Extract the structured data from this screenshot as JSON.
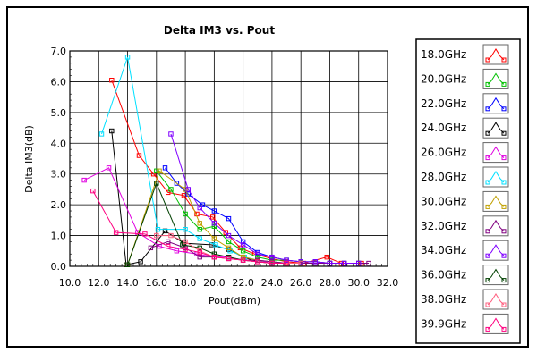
{
  "chart_data": {
    "type": "line",
    "title": "Delta IM3 vs. Pout",
    "xlabel": "Pout(dBm)",
    "ylabel": "Delta IM3(dB)",
    "xlim": [
      10.0,
      32.0
    ],
    "ylim": [
      0.0,
      7.0
    ],
    "x_ticks": [
      "10.0",
      "12.0",
      "14.0",
      "16.0",
      "18.0",
      "20.0",
      "22.0",
      "24.0",
      "26.0",
      "28.0",
      "30.0",
      "32.0"
    ],
    "y_ticks": [
      "0.0",
      "1.0",
      "2.0",
      "3.0",
      "4.0",
      "5.0",
      "6.0",
      "7.0"
    ],
    "grid": true,
    "legend_position": "right",
    "series": [
      {
        "name": "18.0GHz",
        "color": "#ff0000",
        "points": [
          [
            12.9,
            6.05
          ],
          [
            14.8,
            3.6
          ],
          [
            15.8,
            3.0
          ],
          [
            16.8,
            2.4
          ],
          [
            17.9,
            2.3
          ],
          [
            18.8,
            1.7
          ],
          [
            19.9,
            1.6
          ],
          [
            20.8,
            1.1
          ],
          [
            21.8,
            0.6
          ],
          [
            22.8,
            0.4
          ],
          [
            24.0,
            0.25
          ],
          [
            25.0,
            0.15
          ],
          [
            26.2,
            0.1
          ],
          [
            27.8,
            0.3
          ],
          [
            28.8,
            0.1
          ],
          [
            30.2,
            0.1
          ]
        ]
      },
      {
        "name": "20.0GHz",
        "color": "#00c000",
        "points": [
          [
            16.0,
            3.1
          ],
          [
            17.0,
            2.5
          ],
          [
            18.0,
            1.7
          ],
          [
            19.0,
            1.2
          ],
          [
            20.0,
            1.3
          ],
          [
            21.0,
            0.8
          ],
          [
            22.0,
            0.5
          ],
          [
            23.0,
            0.3
          ],
          [
            24.0,
            0.2
          ],
          [
            25.0,
            0.2
          ],
          [
            26.0,
            0.15
          ],
          [
            27.0,
            0.15
          ],
          [
            28.0,
            0.1
          ],
          [
            29.0,
            0.1
          ],
          [
            30.0,
            0.1
          ]
        ]
      },
      {
        "name": "22.0GHz",
        "color": "#0000ff",
        "points": [
          [
            16.6,
            3.2
          ],
          [
            17.4,
            2.7
          ],
          [
            18.2,
            2.35
          ],
          [
            19.2,
            2.0
          ],
          [
            20.0,
            1.8
          ],
          [
            21.0,
            1.55
          ],
          [
            22.0,
            0.8
          ],
          [
            23.0,
            0.45
          ],
          [
            24.0,
            0.3
          ],
          [
            25.0,
            0.2
          ],
          [
            26.0,
            0.15
          ],
          [
            27.0,
            0.15
          ],
          [
            28.0,
            0.1
          ],
          [
            29.0,
            0.1
          ],
          [
            30.0,
            0.1
          ]
        ]
      },
      {
        "name": "24.0GHz",
        "color": "#000000",
        "points": [
          [
            12.9,
            4.4
          ],
          [
            13.9,
            0.05
          ],
          [
            14.9,
            0.15
          ],
          [
            16.6,
            1.15
          ],
          [
            17.9,
            0.75
          ],
          [
            19.8,
            0.7
          ],
          [
            21.0,
            0.55
          ],
          [
            22.0,
            0.3
          ],
          [
            23.0,
            0.15
          ],
          [
            24.0,
            0.1
          ],
          [
            25.0,
            0.1
          ],
          [
            26.0,
            0.1
          ],
          [
            27.0,
            0.1
          ],
          [
            28.0,
            0.1
          ]
        ]
      },
      {
        "name": "26.0GHz",
        "color": "#e000e0",
        "points": [
          [
            11.0,
            2.8
          ],
          [
            12.7,
            3.2
          ],
          [
            14.7,
            1.1
          ],
          [
            16.2,
            0.65
          ],
          [
            17.4,
            0.5
          ],
          [
            18.8,
            0.4
          ],
          [
            20.0,
            0.3
          ],
          [
            21.0,
            0.3
          ],
          [
            22.0,
            0.2
          ],
          [
            23.0,
            0.2
          ],
          [
            24.0,
            0.1
          ],
          [
            25.0,
            0.1
          ],
          [
            26.0,
            0.1
          ],
          [
            27.0,
            0.1
          ]
        ]
      },
      {
        "name": "28.0GHz",
        "color": "#00e0ff",
        "points": [
          [
            12.2,
            4.3
          ],
          [
            14.0,
            6.8
          ],
          [
            16.1,
            1.2
          ],
          [
            18.0,
            1.2
          ],
          [
            19.0,
            0.9
          ],
          [
            20.1,
            0.7
          ],
          [
            21.1,
            0.5
          ],
          [
            22.1,
            0.3
          ],
          [
            23.0,
            0.2
          ],
          [
            24.0,
            0.15
          ],
          [
            25.0,
            0.1
          ],
          [
            26.0,
            0.1
          ],
          [
            27.0,
            0.1
          ]
        ]
      },
      {
        "name": "30.0GHz",
        "color": "#c0a000",
        "points": [
          [
            14.0,
            0.05
          ],
          [
            16.2,
            3.1
          ],
          [
            18.0,
            2.5
          ],
          [
            19.0,
            1.4
          ],
          [
            20.0,
            0.9
          ],
          [
            21.0,
            0.6
          ],
          [
            22.0,
            0.3
          ],
          [
            23.0,
            0.2
          ],
          [
            24.0,
            0.15
          ],
          [
            25.0,
            0.1
          ],
          [
            26.0,
            0.1
          ],
          [
            27.0,
            0.1
          ]
        ]
      },
      {
        "name": "32.0GHz",
        "color": "#800080",
        "points": [
          [
            15.6,
            0.6
          ],
          [
            16.8,
            0.8
          ],
          [
            18.0,
            0.6
          ],
          [
            19.0,
            0.3
          ],
          [
            20.0,
            0.3
          ],
          [
            21.0,
            0.25
          ],
          [
            22.0,
            0.2
          ],
          [
            23.0,
            0.2
          ],
          [
            24.0,
            0.15
          ],
          [
            25.0,
            0.1
          ],
          [
            26.0,
            0.1
          ],
          [
            27.0,
            0.1
          ],
          [
            28.0,
            0.1
          ],
          [
            29.0,
            0.1
          ],
          [
            30.0,
            0.1
          ],
          [
            30.7,
            0.1
          ]
        ]
      },
      {
        "name": "34.0GHz",
        "color": "#8000ff",
        "points": [
          [
            17.0,
            4.3
          ],
          [
            18.2,
            2.5
          ],
          [
            19.0,
            1.9
          ],
          [
            20.0,
            1.4
          ],
          [
            21.0,
            1.0
          ],
          [
            22.0,
            0.7
          ],
          [
            23.0,
            0.4
          ],
          [
            24.0,
            0.3
          ],
          [
            25.0,
            0.2
          ],
          [
            26.0,
            0.15
          ],
          [
            27.0,
            0.15
          ],
          [
            28.0,
            0.1
          ],
          [
            29.0,
            0.1
          ],
          [
            30.0,
            0.1
          ]
        ]
      },
      {
        "name": "36.0GHz",
        "color": "#004000",
        "points": [
          [
            14.0,
            0.05
          ],
          [
            16.0,
            2.7
          ],
          [
            17.8,
            0.7
          ],
          [
            19.0,
            0.6
          ],
          [
            20.0,
            0.4
          ],
          [
            21.0,
            0.3
          ],
          [
            22.0,
            0.2
          ],
          [
            23.0,
            0.15
          ],
          [
            24.0,
            0.1
          ],
          [
            25.0,
            0.1
          ],
          [
            26.0,
            0.1
          ]
        ]
      },
      {
        "name": "38.0GHz",
        "color": "#ff6080",
        "points": [
          [
            16.0,
            1.0
          ],
          [
            17.0,
            1.0
          ],
          [
            18.0,
            0.8
          ],
          [
            19.0,
            0.5
          ],
          [
            20.0,
            0.3
          ],
          [
            21.0,
            0.25
          ],
          [
            22.0,
            0.2
          ],
          [
            23.0,
            0.15
          ],
          [
            24.0,
            0.1
          ],
          [
            25.0,
            0.1
          ],
          [
            26.0,
            0.1
          ]
        ]
      },
      {
        "name": "39.9GHz",
        "color": "#ff0080",
        "points": [
          [
            11.6,
            2.45
          ],
          [
            13.2,
            1.1
          ],
          [
            15.2,
            1.05
          ],
          [
            16.8,
            0.65
          ],
          [
            18.0,
            0.55
          ],
          [
            19.0,
            0.45
          ],
          [
            20.0,
            0.3
          ],
          [
            21.0,
            0.25
          ],
          [
            22.0,
            0.2
          ],
          [
            23.0,
            0.15
          ],
          [
            24.0,
            0.1
          ],
          [
            25.0,
            0.1
          ]
        ]
      }
    ]
  }
}
